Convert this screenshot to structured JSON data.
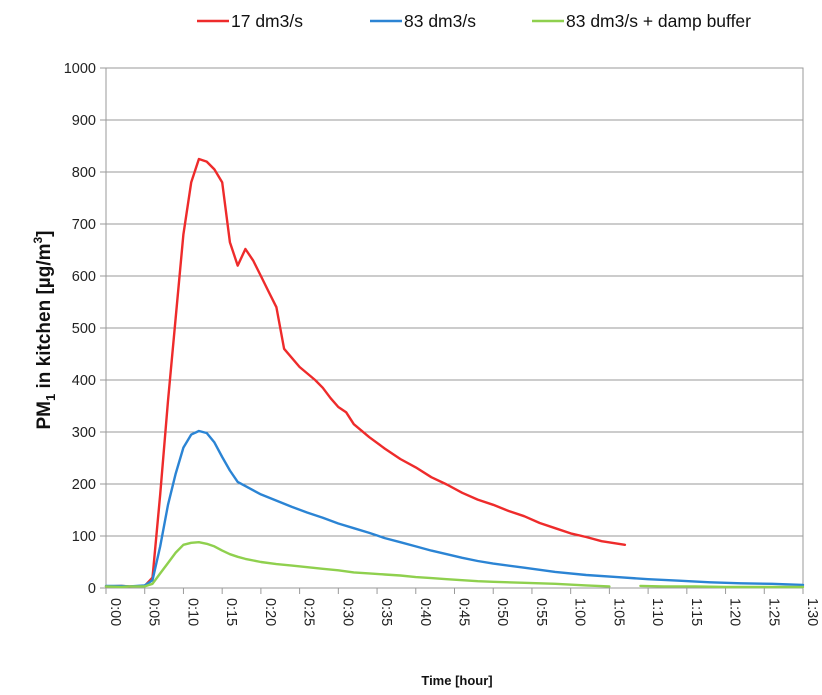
{
  "chart_data": {
    "type": "line",
    "xlabel": "Time [hour]",
    "ylabel_main": "PM",
    "ylabel_sub": "1",
    "ylabel_rest": " in kitchen [µg/m",
    "ylabel_sup": "3",
    "ylabel_end": "]",
    "ylim": [
      0,
      1000
    ],
    "yticks": [
      0,
      100,
      200,
      300,
      400,
      500,
      600,
      700,
      800,
      900,
      1000
    ],
    "xlim_minutes": [
      0,
      90
    ],
    "xtick_labels": [
      "0:00",
      "0:05",
      "0:10",
      "0:15",
      "0:20",
      "0:25",
      "0:30",
      "0:35",
      "0:40",
      "0:45",
      "0:50",
      "0:55",
      "1:00",
      "1:05",
      "1:10",
      "1:15",
      "1:20",
      "1:25",
      "1:30"
    ],
    "grid": "horizontal",
    "legend_position": "top",
    "series": [
      {
        "name": "17 dm3/s",
        "color": "#ee2b2b",
        "x_minutes": [
          0,
          2,
          3,
          5,
          6,
          7,
          8,
          9,
          10,
          11,
          12,
          13,
          14,
          15,
          16,
          17,
          18,
          19,
          20,
          21,
          22,
          23,
          25,
          27,
          28,
          29,
          30,
          31,
          32,
          34,
          36,
          38,
          40,
          42,
          44,
          46,
          48,
          50,
          52,
          54,
          56,
          58,
          60,
          62,
          64,
          67
        ],
        "values": [
          3,
          4,
          3,
          4,
          20,
          180,
          360,
          520,
          680,
          780,
          825,
          820,
          805,
          780,
          665,
          620,
          652,
          630,
          600,
          570,
          540,
          460,
          425,
          400,
          385,
          365,
          348,
          338,
          315,
          290,
          268,
          248,
          232,
          213,
          199,
          183,
          170,
          160,
          148,
          138,
          125,
          115,
          105,
          98,
          90,
          83
        ]
      },
      {
        "name": "83 dm3/s",
        "color": "#2b84d4",
        "x_minutes": [
          0,
          2,
          3,
          5,
          6,
          7,
          8,
          9,
          10,
          11,
          12,
          13,
          14,
          15,
          16,
          17,
          18,
          20,
          22,
          24,
          26,
          28,
          30,
          32,
          34,
          36,
          38,
          40,
          42,
          44,
          46,
          48,
          50,
          54,
          58,
          62,
          66,
          70,
          74,
          78,
          82,
          86,
          90
        ],
        "values": [
          4,
          4,
          3,
          5,
          15,
          80,
          160,
          220,
          270,
          295,
          302,
          298,
          280,
          252,
          226,
          204,
          196,
          180,
          168,
          156,
          145,
          135,
          124,
          115,
          106,
          96,
          88,
          80,
          72,
          65,
          58,
          52,
          47,
          39,
          31,
          25,
          21,
          17,
          14,
          11,
          9,
          8,
          6
        ]
      },
      {
        "name": "83 dm3/s + damp buffer",
        "color": "#8fd04e",
        "x_minutes": [
          0,
          2,
          3,
          5,
          6,
          7,
          8,
          9,
          10,
          11,
          12,
          13,
          14,
          15,
          16,
          17,
          18,
          20,
          22,
          24,
          26,
          28,
          30,
          32,
          34,
          36,
          38,
          40,
          42,
          44,
          46,
          48,
          50,
          54,
          58,
          62,
          65
        ],
        "values": [
          3,
          2,
          3,
          3,
          8,
          28,
          48,
          68,
          83,
          87,
          88,
          85,
          80,
          72,
          65,
          60,
          56,
          50,
          46,
          43,
          40,
          37,
          34,
          30,
          28,
          26,
          24,
          21,
          19,
          17,
          15,
          13,
          12,
          10,
          8,
          5,
          3
        ]
      },
      {
        "name": "",
        "color": "#8fd04e",
        "x_minutes": [
          69,
          72,
          76,
          80,
          84,
          88,
          90
        ],
        "values": [
          4,
          3,
          3,
          2,
          2,
          2,
          2
        ]
      }
    ]
  }
}
